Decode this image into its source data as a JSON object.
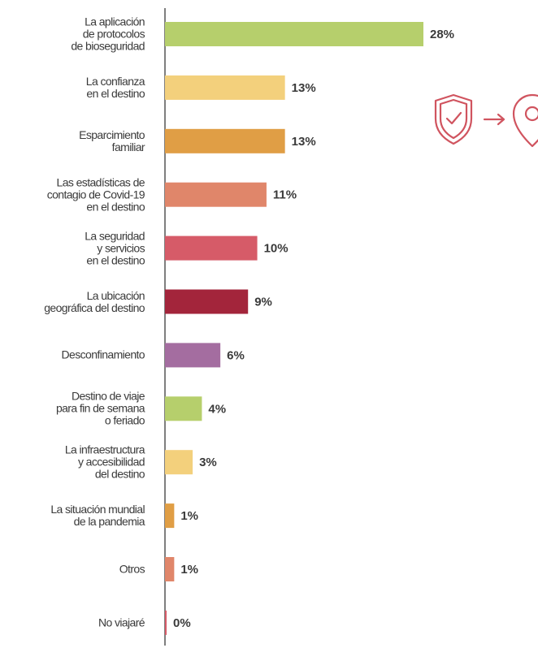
{
  "chart_data": {
    "type": "barh",
    "categories": [
      "La aplicación\nde protocolos\nde bioseguridad",
      "La confianza\nen el destino",
      "Esparcimiento\nfamiliar",
      "Las estadísticas de\ncontagio de Covid-19\nen el destino",
      "La seguridad\ny servicios\nen el destino",
      "La ubicación\ngeográfica del destino",
      "Desconfinamiento",
      "Destino de viaje\npara fin de semana\no feriado",
      "La infraestructura\ny accesibilidad\ndel destino",
      "La situación mundial\nde la pandemia",
      "Otros",
      "No viajaré"
    ],
    "values": [
      28,
      13,
      13,
      11,
      10,
      9,
      6,
      4,
      3,
      1,
      1,
      0
    ],
    "value_labels": [
      "28%",
      "13%",
      "13%",
      "11%",
      "10%",
      "9%",
      "6%",
      "4%",
      "3%",
      "1%",
      "1%",
      "0%"
    ],
    "colors": [
      "#b6cf6c",
      "#f3d07c",
      "#e09e45",
      "#e0866a",
      "#d65b68",
      "#a3253b",
      "#a46da0",
      "#b6cf6c",
      "#f3d07c",
      "#e09e45",
      "#e0866a",
      "#d65b68"
    ]
  }
}
